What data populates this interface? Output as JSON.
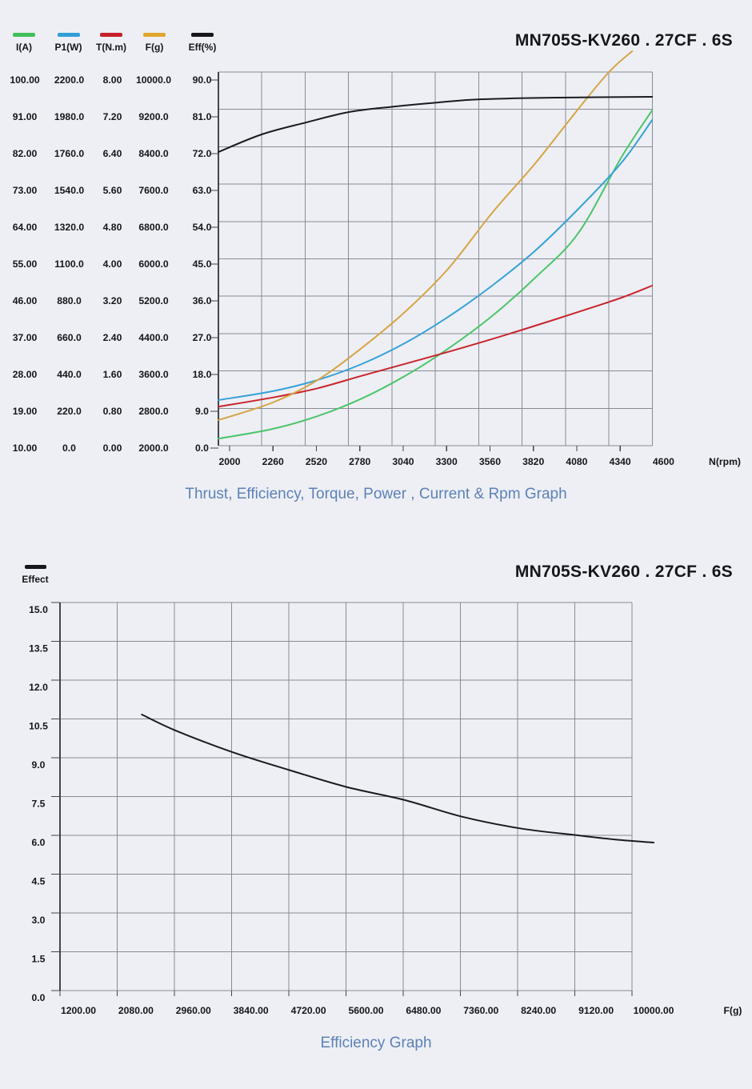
{
  "page": {
    "background": "#edeff4"
  },
  "chart1": {
    "title": "MN705S-KV260 . 27CF . 6S",
    "caption": "Thrust, Efficiency, Torque, Power , Current & Rpm Graph",
    "x_axis_label": "N(rpm)",
    "legend": [
      {
        "label": "I(A)",
        "color": "#3fbf57"
      },
      {
        "label": "P1(W)",
        "color": "#2f9fd6"
      },
      {
        "label": "T(N.m)",
        "color": "#c62128"
      },
      {
        "label": "F(g)",
        "color": "#e0a62e"
      },
      {
        "label": "Eff(%)",
        "color": "#17171b"
      }
    ],
    "y_axis_columns": [
      {
        "name": "I(A)",
        "ticks": [
          "100.00",
          "91.00",
          "82.00",
          "73.00",
          "64.00",
          "55.00",
          "46.00",
          "37.00",
          "28.00",
          "19.00",
          "10.00"
        ]
      },
      {
        "name": "P1(W)",
        "ticks": [
          "2200.0",
          "1980.0",
          "1760.0",
          "1540.0",
          "1320.0",
          "1100.0",
          "880.0",
          "660.0",
          "440.0",
          "220.0",
          "0.0"
        ]
      },
      {
        "name": "T(N.m)",
        "ticks": [
          "8.00",
          "7.20",
          "6.40",
          "5.60",
          "4.80",
          "4.00",
          "3.20",
          "2.40",
          "1.60",
          "0.80",
          "0.00"
        ]
      },
      {
        "name": "F(g)",
        "ticks": [
          "10000.0",
          "9200.0",
          "8400.0",
          "7600.0",
          "6800.0",
          "6000.0",
          "5200.0",
          "4400.0",
          "3600.0",
          "2800.0",
          "2000.0"
        ]
      },
      {
        "name": "Eff(%)",
        "ticks": [
          "90.0",
          "81.0",
          "72.0",
          "63.0",
          "54.0",
          "45.0",
          "36.0",
          "27.0",
          "18.0",
          "9.0",
          "0.0"
        ]
      }
    ],
    "x_ticks": [
      "2000",
      "2260",
      "2520",
      "2780",
      "3040",
      "3300",
      "3560",
      "3820",
      "4080",
      "4340",
      "4600"
    ]
  },
  "chart2": {
    "title": "MN705S-KV260 . 27CF . 6S",
    "caption": "Efficiency Graph",
    "x_axis_label": "F(g)",
    "legend": [
      {
        "label": "Effect",
        "color": "#17171b"
      }
    ],
    "y_ticks": [
      "15.0",
      "13.5",
      "12.0",
      "10.5",
      "9.0",
      "7.5",
      "6.0",
      "4.5",
      "3.0",
      "1.5",
      "0.0"
    ],
    "x_ticks": [
      "1200.00",
      "2080.00",
      "2960.00",
      "3840.00",
      "4720.00",
      "5600.00",
      "6480.00",
      "7360.00",
      "8240.00",
      "9120.00",
      "10000.00"
    ]
  },
  "chart_data": [
    {
      "type": "line",
      "title": "MN705S-KV260 . 27CF . 6S",
      "caption": "Thrust, Efficiency, Torque, Power , Current & Rpm Graph",
      "xlabel": "N(rpm)",
      "x_range": [
        2000,
        4600
      ],
      "grid": true,
      "series": [
        {
          "name": "I(A)",
          "unit": "A",
          "color": "#4cc468",
          "axis_range": [
            10,
            100
          ],
          "x": [
            1933,
            2259,
            2527,
            2791,
            3050,
            3309,
            3573,
            3832,
            4090,
            4349,
            4532
          ],
          "y": [
            12.3,
            14.7,
            17.8,
            22.1,
            27.6,
            34.3,
            42.3,
            51.7,
            62.6,
            81.2,
            92.6
          ]
        },
        {
          "name": "P1(W)",
          "unit": "W",
          "color": "#35a1d8",
          "axis_range": [
            0,
            2200
          ],
          "x": [
            1933,
            2259,
            2527,
            2791,
            3050,
            3309,
            3573,
            3832,
            4090,
            4349,
            4532
          ],
          "y": [
            287,
            340,
            407,
            502,
            627,
            784,
            971,
            1181,
            1430,
            1707,
            1961
          ]
        },
        {
          "name": "T(N.m)",
          "unit": "N.m",
          "color": "#c8252c",
          "axis_range": [
            0,
            8
          ],
          "x": [
            1933,
            2259,
            2527,
            2791,
            3050,
            3309,
            3573,
            3832,
            4090,
            4349,
            4532
          ],
          "y": [
            0.9,
            1.1,
            1.3,
            1.57,
            1.83,
            2.09,
            2.37,
            2.66,
            2.96,
            3.27,
            3.53
          ]
        },
        {
          "name": "F(g)",
          "unit": "g",
          "color": "#d7a443",
          "axis_range": [
            2000,
            10000
          ],
          "x": [
            1933,
            2259,
            2527,
            2791,
            3050,
            3309,
            3573,
            3832,
            4086,
            4273,
            4412
          ],
          "y": [
            2609,
            2991,
            3478,
            4174,
            4957,
            5896,
            7113,
            8191,
            9357,
            10174,
            10626
          ]
        },
        {
          "name": "Eff(%)",
          "unit": "%",
          "color": "#1b1b1f",
          "axis_range": [
            0,
            90
          ],
          "x": [
            1933,
            2192,
            2456,
            2719,
            2983,
            3247,
            3511,
            3981,
            4532
          ],
          "y": [
            72.4,
            76.7,
            79.6,
            82.2,
            83.5,
            84.5,
            85.3,
            85.7,
            85.9
          ]
        }
      ]
    },
    {
      "type": "line",
      "title": "MN705S-KV260 . 27CF . 6S",
      "caption": "Efficiency Graph",
      "xlabel": "F(g)",
      "ylabel": "Effect",
      "x_range": [
        1200,
        10000
      ],
      "y_range": [
        0,
        15
      ],
      "grid": true,
      "series": [
        {
          "name": "Effect",
          "color": "#1b1b1f",
          "x": [
            2170,
            2670,
            3550,
            4430,
            5300,
            6180,
            7070,
            7950,
            8830,
            9400,
            10000
          ],
          "y": [
            10.95,
            10.35,
            9.5,
            8.8,
            8.15,
            7.65,
            7.0,
            6.55,
            6.28,
            6.12,
            6.0
          ]
        }
      ]
    }
  ]
}
